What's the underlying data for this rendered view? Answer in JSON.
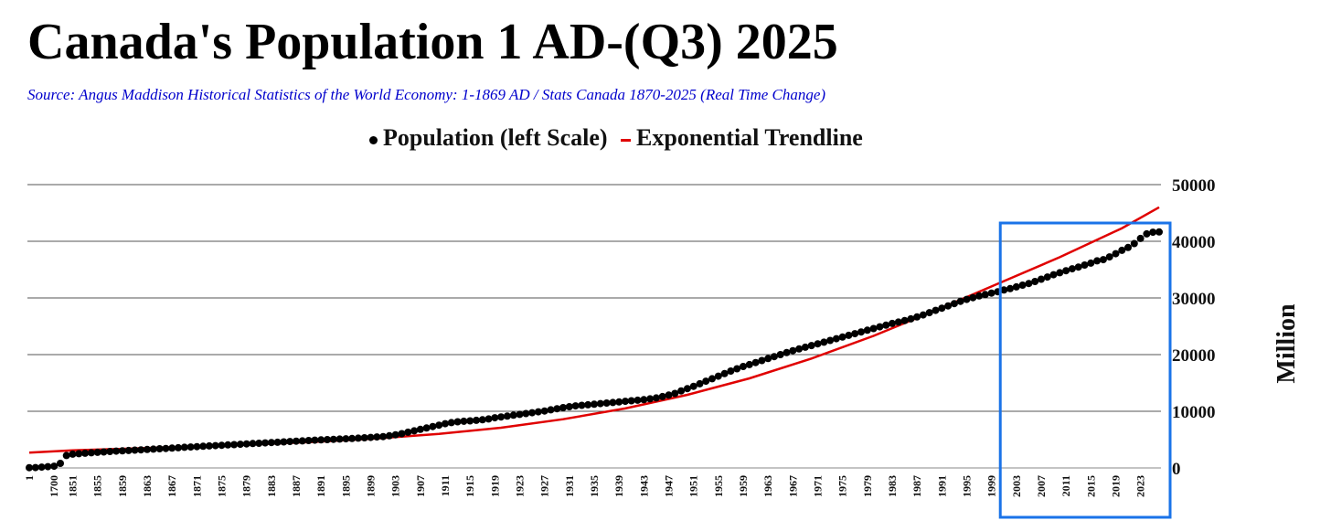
{
  "chart_data": {
    "type": "scatter",
    "title": "Canada's Population 1 AD-(Q3) 2025",
    "subtitle": "Source: Angus Maddison Historical Statistics of the World Economy:  1-1869 AD / Stats Canada 1870-2025 (Real Time Change)",
    "ylabel": "Million",
    "xlabel": "",
    "ylim": [
      0,
      50000
    ],
    "y_ticks": [
      0,
      10000,
      20000,
      30000,
      40000,
      50000
    ],
    "grid": true,
    "legend_position": "top-center",
    "x_tick_labels": [
      "1",
      "1700",
      "1851",
      "1855",
      "1859",
      "1863",
      "1867",
      "1871",
      "1875",
      "1879",
      "1883",
      "1887",
      "1891",
      "1895",
      "1899",
      "1903",
      "1907",
      "1911",
      "1915",
      "1919",
      "1923",
      "1927",
      "1931",
      "1935",
      "1939",
      "1943",
      "1947",
      "1951",
      "1955",
      "1959",
      "1963",
      "1967",
      "1971",
      "1975",
      "1979",
      "1983",
      "1987",
      "1991",
      "1995",
      "1999",
      "2003",
      "2007",
      "2011",
      "2015",
      "2019",
      "2023"
    ],
    "series": [
      {
        "name": "Population (left Scale)",
        "type": "scatter",
        "color": "#000000",
        "points": [
          [
            "1",
            50
          ],
          [
            "1000",
            70
          ],
          [
            "1500",
            150
          ],
          [
            "1600",
            220
          ],
          [
            "1700",
            300
          ],
          [
            "1820",
            800
          ],
          [
            "1850",
            2200
          ],
          [
            "1851",
            2436
          ],
          [
            "1852",
            2520
          ],
          [
            "1853",
            2600
          ],
          [
            "1854",
            2680
          ],
          [
            "1855",
            2760
          ],
          [
            "1856",
            2830
          ],
          [
            "1857",
            2900
          ],
          [
            "1858",
            2960
          ],
          [
            "1859",
            3020
          ],
          [
            "1860",
            3080
          ],
          [
            "1861",
            3140
          ],
          [
            "1862",
            3200
          ],
          [
            "1863",
            3260
          ],
          [
            "1864",
            3320
          ],
          [
            "1865",
            3380
          ],
          [
            "1866",
            3440
          ],
          [
            "1867",
            3500
          ],
          [
            "1868",
            3570
          ],
          [
            "1869",
            3640
          ],
          [
            "1870",
            3700
          ],
          [
            "1871",
            3760
          ],
          [
            "1872",
            3820
          ],
          [
            "1873",
            3880
          ],
          [
            "1874",
            3940
          ],
          [
            "1875",
            4000
          ],
          [
            "1876",
            4060
          ],
          [
            "1877",
            4120
          ],
          [
            "1878",
            4180
          ],
          [
            "1879",
            4240
          ],
          [
            "1880",
            4300
          ],
          [
            "1881",
            4360
          ],
          [
            "1882",
            4420
          ],
          [
            "1883",
            4480
          ],
          [
            "1884",
            4540
          ],
          [
            "1885",
            4600
          ],
          [
            "1886",
            4660
          ],
          [
            "1887",
            4720
          ],
          [
            "1888",
            4780
          ],
          [
            "1889",
            4840
          ],
          [
            "1890",
            4900
          ],
          [
            "1891",
            4950
          ],
          [
            "1892",
            5000
          ],
          [
            "1893",
            5050
          ],
          [
            "1894",
            5100
          ],
          [
            "1895",
            5150
          ],
          [
            "1896",
            5200
          ],
          [
            "1897",
            5260
          ],
          [
            "1898",
            5320
          ],
          [
            "1899",
            5390
          ],
          [
            "1900",
            5460
          ],
          [
            "1901",
            5540
          ],
          [
            "1902",
            5680
          ],
          [
            "1903",
            5850
          ],
          [
            "1904",
            6050
          ],
          [
            "1905",
            6300
          ],
          [
            "1906",
            6550
          ],
          [
            "1907",
            6800
          ],
          [
            "1908",
            7050
          ],
          [
            "1909",
            7300
          ],
          [
            "1910",
            7550
          ],
          [
            "1911",
            7800
          ],
          [
            "1912",
            8000
          ],
          [
            "1913",
            8150
          ],
          [
            "1914",
            8250
          ],
          [
            "1915",
            8300
          ],
          [
            "1916",
            8400
          ],
          [
            "1917",
            8500
          ],
          [
            "1918",
            8650
          ],
          [
            "1919",
            8850
          ],
          [
            "1920",
            9000
          ],
          [
            "1921",
            9150
          ],
          [
            "1922",
            9300
          ],
          [
            "1923",
            9450
          ],
          [
            "1924",
            9600
          ],
          [
            "1925",
            9750
          ],
          [
            "1926",
            9900
          ],
          [
            "1927",
            10050
          ],
          [
            "1928",
            10250
          ],
          [
            "1929",
            10450
          ],
          [
            "1930",
            10650
          ],
          [
            "1931",
            10800
          ],
          [
            "1932",
            10950
          ],
          [
            "1933",
            11050
          ],
          [
            "1934",
            11150
          ],
          [
            "1935",
            11250
          ],
          [
            "1936",
            11350
          ],
          [
            "1937",
            11450
          ],
          [
            "1938",
            11550
          ],
          [
            "1939",
            11650
          ],
          [
            "1940",
            11750
          ],
          [
            "1941",
            11850
          ],
          [
            "1942",
            11950
          ],
          [
            "1943",
            12050
          ],
          [
            "1944",
            12200
          ],
          [
            "1945",
            12350
          ],
          [
            "1946",
            12600
          ],
          [
            "1947",
            12850
          ],
          [
            "1948",
            13150
          ],
          [
            "1949",
            13600
          ],
          [
            "1950",
            14000
          ],
          [
            "1951",
            14400
          ],
          [
            "1952",
            14850
          ],
          [
            "1953",
            15300
          ],
          [
            "1954",
            15750
          ],
          [
            "1955",
            16200
          ],
          [
            "1956",
            16650
          ],
          [
            "1957",
            17100
          ],
          [
            "1958",
            17500
          ],
          [
            "1959",
            17900
          ],
          [
            "1960",
            18250
          ],
          [
            "1961",
            18600
          ],
          [
            "1962",
            18950
          ],
          [
            "1963",
            19300
          ],
          [
            "1964",
            19650
          ],
          [
            "1965",
            20000
          ],
          [
            "1966",
            20350
          ],
          [
            "1967",
            20700
          ],
          [
            "1968",
            21000
          ],
          [
            "1969",
            21300
          ],
          [
            "1970",
            21600
          ],
          [
            "1971",
            21900
          ],
          [
            "1972",
            22200
          ],
          [
            "1973",
            22500
          ],
          [
            "1974",
            22800
          ],
          [
            "1975",
            23100
          ],
          [
            "1976",
            23400
          ],
          [
            "1977",
            23700
          ],
          [
            "1978",
            24000
          ],
          [
            "1979",
            24300
          ],
          [
            "1980",
            24600
          ],
          [
            "1981",
            24900
          ],
          [
            "1982",
            25200
          ],
          [
            "1983",
            25500
          ],
          [
            "1984",
            25750
          ],
          [
            "1985",
            26000
          ],
          [
            "1986",
            26300
          ],
          [
            "1987",
            26650
          ],
          [
            "1988",
            27000
          ],
          [
            "1989",
            27400
          ],
          [
            "1990",
            27800
          ],
          [
            "1991",
            28200
          ],
          [
            "1992",
            28600
          ],
          [
            "1993",
            29000
          ],
          [
            "1994",
            29400
          ],
          [
            "1995",
            29750
          ],
          [
            "1996",
            30050
          ],
          [
            "1997",
            30350
          ],
          [
            "1998",
            30600
          ],
          [
            "1999",
            30850
          ],
          [
            "2000",
            31100
          ],
          [
            "2001",
            31400
          ],
          [
            "2002",
            31650
          ],
          [
            "2003",
            31950
          ],
          [
            "2004",
            32250
          ],
          [
            "2005",
            32550
          ],
          [
            "2006",
            32900
          ],
          [
            "2007",
            33300
          ],
          [
            "2008",
            33700
          ],
          [
            "2009",
            34100
          ],
          [
            "2010",
            34450
          ],
          [
            "2011",
            34800
          ],
          [
            "2012",
            35150
          ],
          [
            "2013",
            35450
          ],
          [
            "2014",
            35800
          ],
          [
            "2015",
            36150
          ],
          [
            "2016",
            36550
          ],
          [
            "2017",
            36750
          ],
          [
            "2018",
            37250
          ],
          [
            "2019",
            37800
          ],
          [
            "2020",
            38400
          ],
          [
            "2021",
            38900
          ],
          [
            "2022",
            39600
          ],
          [
            "2023",
            40500
          ],
          [
            "2024",
            41300
          ],
          [
            "2025",
            41600
          ],
          [
            "Q3 2025",
            41650
          ]
        ]
      },
      {
        "name": "Exponential Trendline",
        "type": "line",
        "color": "#e00000",
        "points": [
          [
            "1",
            2700
          ],
          [
            "1851",
            3100
          ],
          [
            "1860",
            3400
          ],
          [
            "1870",
            3750
          ],
          [
            "1880",
            4150
          ],
          [
            "1890",
            4600
          ],
          [
            "1900",
            5200
          ],
          [
            "1910",
            6000
          ],
          [
            "1920",
            7100
          ],
          [
            "1930",
            8600
          ],
          [
            "1940",
            10500
          ],
          [
            "1950",
            12900
          ],
          [
            "1960",
            15800
          ],
          [
            "1970",
            19300
          ],
          [
            "1980",
            23300
          ],
          [
            "1990",
            27800
          ],
          [
            "2000",
            32500
          ],
          [
            "2010",
            37200
          ],
          [
            "2020",
            42300
          ],
          [
            "Q3 2025",
            46000
          ]
        ]
      }
    ],
    "annotations": [
      {
        "type": "highlight-box",
        "color": "#1a73e8",
        "from_x": "2001",
        "to_x": "Q3 2025"
      }
    ]
  }
}
